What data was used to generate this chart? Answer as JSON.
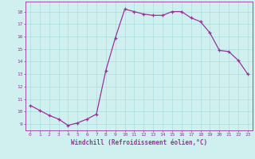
{
  "x": [
    0,
    1,
    2,
    3,
    4,
    5,
    6,
    7,
    8,
    9,
    10,
    11,
    12,
    13,
    14,
    15,
    16,
    17,
    18,
    19,
    20,
    21,
    22,
    23
  ],
  "y": [
    10.5,
    10.1,
    9.7,
    9.4,
    8.9,
    9.1,
    9.4,
    9.8,
    13.3,
    15.9,
    18.2,
    18.0,
    17.8,
    17.7,
    17.7,
    18.0,
    18.0,
    17.5,
    17.2,
    16.3,
    14.9,
    14.8,
    14.1,
    13.0
  ],
  "line_color": "#993399",
  "marker": "+",
  "marker_size": 3,
  "bg_color": "#d0f0f0",
  "grid_color": "#aadddd",
  "xlabel": "Windchill (Refroidissement éolien,°C)",
  "xlabel_color": "#993399",
  "tick_color": "#993399",
  "ylim": [
    8.5,
    18.8
  ],
  "xlim": [
    -0.5,
    23.5
  ],
  "yticks": [
    9,
    10,
    11,
    12,
    13,
    14,
    15,
    16,
    17,
    18
  ],
  "xticks": [
    0,
    1,
    2,
    3,
    4,
    5,
    6,
    7,
    8,
    9,
    10,
    11,
    12,
    13,
    14,
    15,
    16,
    17,
    18,
    19,
    20,
    21,
    22,
    23
  ]
}
